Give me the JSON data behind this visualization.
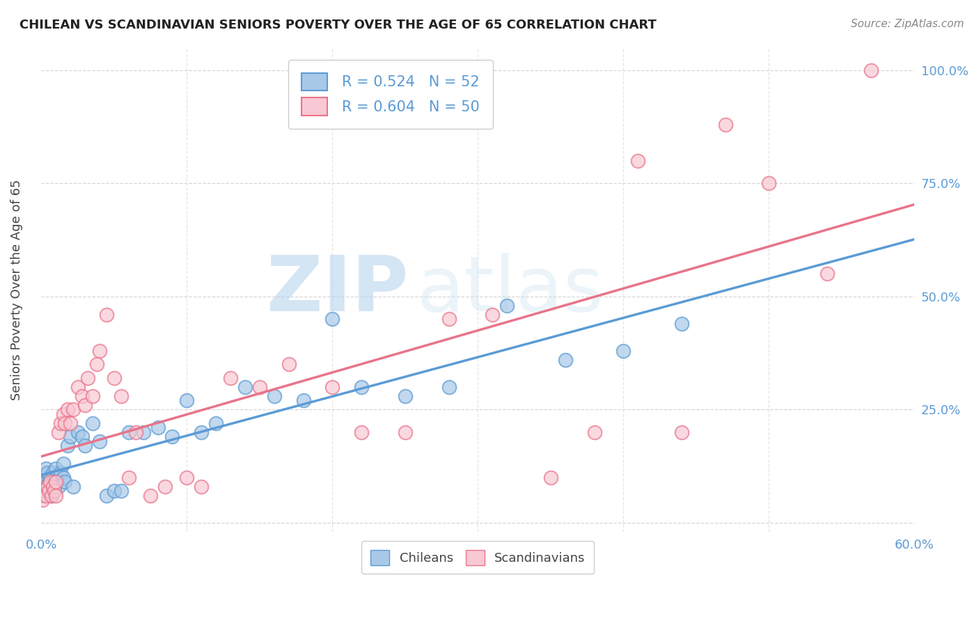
{
  "title": "CHILEAN VS SCANDINAVIAN SENIORS POVERTY OVER THE AGE OF 65 CORRELATION CHART",
  "source": "Source: ZipAtlas.com",
  "ylabel": "Seniors Poverty Over the Age of 65",
  "xlim": [
    0.0,
    0.6
  ],
  "ylim": [
    -0.02,
    1.05
  ],
  "xticks": [
    0.0,
    0.1,
    0.2,
    0.3,
    0.4,
    0.5,
    0.6
  ],
  "yticks": [
    0.0,
    0.25,
    0.5,
    0.75,
    1.0
  ],
  "chilean_color": "#a8c8e8",
  "scandinavian_color": "#f8c8d4",
  "chilean_edge": "#5b9bd5",
  "scandinavian_edge": "#e8748a",
  "chilean_regression_color": "#5b9bd5",
  "scandinavian_regression_color": "#e8748a",
  "legend_text1": "R = 0.524   N = 52",
  "legend_text2": "R = 0.604   N = 50",
  "watermark_zip": "ZIP",
  "watermark_atlas": "atlas",
  "chilean_x": [
    0.001,
    0.002,
    0.002,
    0.003,
    0.003,
    0.004,
    0.004,
    0.005,
    0.005,
    0.006,
    0.006,
    0.007,
    0.008,
    0.008,
    0.009,
    0.01,
    0.01,
    0.011,
    0.012,
    0.013,
    0.015,
    0.015,
    0.016,
    0.018,
    0.02,
    0.022,
    0.025,
    0.028,
    0.03,
    0.035,
    0.04,
    0.045,
    0.05,
    0.055,
    0.06,
    0.07,
    0.08,
    0.09,
    0.1,
    0.11,
    0.12,
    0.14,
    0.16,
    0.18,
    0.2,
    0.22,
    0.25,
    0.28,
    0.32,
    0.36,
    0.4,
    0.44
  ],
  "chilean_y": [
    0.06,
    0.08,
    0.1,
    0.09,
    0.12,
    0.08,
    0.11,
    0.07,
    0.09,
    0.1,
    0.08,
    0.06,
    0.11,
    0.09,
    0.08,
    0.1,
    0.12,
    0.09,
    0.08,
    0.11,
    0.1,
    0.13,
    0.09,
    0.17,
    0.19,
    0.08,
    0.2,
    0.19,
    0.17,
    0.22,
    0.18,
    0.06,
    0.07,
    0.07,
    0.2,
    0.2,
    0.21,
    0.19,
    0.27,
    0.2,
    0.22,
    0.3,
    0.28,
    0.27,
    0.45,
    0.3,
    0.28,
    0.3,
    0.48,
    0.36,
    0.38,
    0.44
  ],
  "scandinavian_x": [
    0.001,
    0.002,
    0.003,
    0.004,
    0.005,
    0.006,
    0.007,
    0.008,
    0.009,
    0.01,
    0.01,
    0.012,
    0.013,
    0.015,
    0.016,
    0.018,
    0.02,
    0.022,
    0.025,
    0.028,
    0.03,
    0.032,
    0.035,
    0.038,
    0.04,
    0.045,
    0.05,
    0.055,
    0.06,
    0.065,
    0.075,
    0.085,
    0.1,
    0.11,
    0.13,
    0.15,
    0.17,
    0.2,
    0.22,
    0.25,
    0.28,
    0.31,
    0.35,
    0.38,
    0.41,
    0.44,
    0.47,
    0.5,
    0.54,
    0.57
  ],
  "scandinavian_y": [
    0.05,
    0.07,
    0.06,
    0.08,
    0.07,
    0.09,
    0.06,
    0.08,
    0.07,
    0.09,
    0.06,
    0.2,
    0.22,
    0.24,
    0.22,
    0.25,
    0.22,
    0.25,
    0.3,
    0.28,
    0.26,
    0.32,
    0.28,
    0.35,
    0.38,
    0.46,
    0.32,
    0.28,
    0.1,
    0.2,
    0.06,
    0.08,
    0.1,
    0.08,
    0.32,
    0.3,
    0.35,
    0.3,
    0.2,
    0.2,
    0.45,
    0.46,
    0.1,
    0.2,
    0.8,
    0.2,
    0.88,
    0.75,
    0.55,
    1.0
  ]
}
